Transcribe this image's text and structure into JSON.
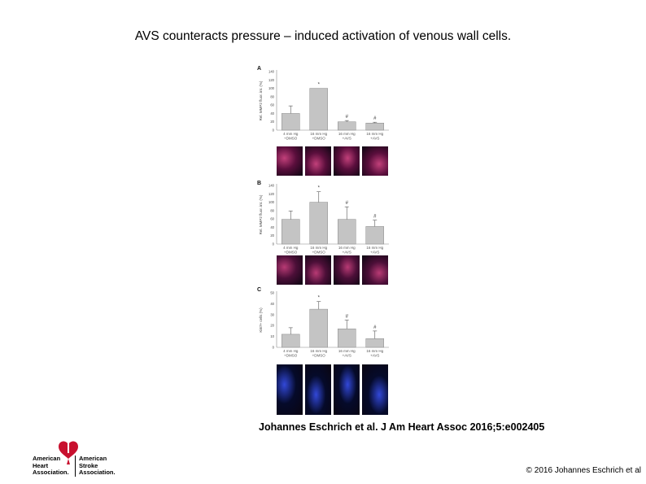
{
  "slide": {
    "title": "AVS counteracts pressure – induced activation of venous wall cells.",
    "citation": "Johannes Eschrich et al. J Am Heart Assoc 2016;5:e002405",
    "copyright": "© 2016 Johannes Eschrich et al"
  },
  "logo": {
    "left_lines": [
      "American",
      "Heart",
      "Association."
    ],
    "right_lines": [
      "American",
      "Stroke",
      "Association."
    ]
  },
  "chart_data": [
    {
      "type": "bar",
      "panel": "A",
      "ylabel": "Rel. MMP2 fluor. int. (%)",
      "ylim": [
        0,
        140
      ],
      "yticks": [
        0,
        20,
        40,
        60,
        80,
        100,
        120,
        140
      ],
      "categories": [
        "4 mm Hg\n+DMSO",
        "16 mm Hg\n+DMSO",
        "16 mm Hg\n+AVS",
        "16 mm Hg\n+AVS"
      ],
      "values": [
        40,
        100,
        20,
        17
      ],
      "errors": [
        18,
        0,
        3,
        2
      ],
      "markers": [
        "",
        "*",
        "#",
        "#"
      ]
    },
    {
      "type": "bar",
      "panel": "B",
      "ylabel": "Rel. MMP2 fluor. int. (%)",
      "ylim": [
        0,
        140
      ],
      "yticks": [
        0,
        20,
        40,
        60,
        80,
        100,
        120,
        140
      ],
      "categories": [
        "4 mm Hg\n+DMSO",
        "16 mm Hg\n+DMSO",
        "16 mm Hg\n+AVS",
        "16 mm Hg\n+AVS"
      ],
      "values": [
        59,
        100,
        59,
        42
      ],
      "errors": [
        20,
        25,
        30,
        15
      ],
      "markers": [
        "",
        "*",
        "#",
        "#"
      ]
    },
    {
      "type": "bar",
      "panel": "C",
      "ylabel": "Ki67+ cells (%)",
      "ylim": [
        0,
        50
      ],
      "yticks": [
        0,
        10,
        20,
        30,
        40,
        50
      ],
      "categories": [
        "4 mm Hg\n+DMSO",
        "16 mm Hg\n+DMSO",
        "16 mm Hg\n+AVS",
        "16 mm Hg\n+AVS"
      ],
      "values": [
        12,
        35,
        17,
        8
      ],
      "errors": [
        6,
        7,
        8,
        7
      ],
      "markers": [
        "",
        "*",
        "#",
        "#"
      ]
    }
  ],
  "micrographs": {
    "A": {
      "tint": "#5a0e3c",
      "glow": "#c2407a"
    },
    "B": {
      "tint": "#4c0f38",
      "glow": "#b83a74"
    },
    "C": {
      "tint": "#050a2a",
      "glow": "#3248d8"
    }
  }
}
